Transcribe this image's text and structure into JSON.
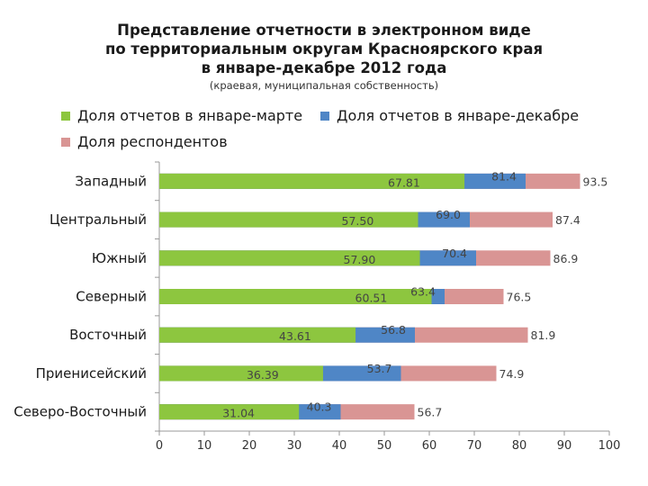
{
  "chart_data": {
    "type": "bar",
    "orientation": "horizontal",
    "title_lines": [
      "Представление отчетности в электронном виде",
      "по территориальным округам Красноярского края",
      "в январе-декабре 2012 года"
    ],
    "subtitle": "(краевая, муниципальная собственность)",
    "categories": [
      "Западный",
      "Центральный",
      "Южный",
      "Северный",
      "Восточный",
      "Приенисейский",
      "Северо-Восточный"
    ],
    "series": [
      {
        "name": "Доля отчетов в январе-марте",
        "values": [
          67.81,
          57.5,
          57.9,
          60.51,
          43.61,
          36.39,
          31.04
        ],
        "labels": [
          "67.81",
          "57.50",
          "57.90",
          "60.51",
          "43.61",
          "36.39",
          "31.04"
        ],
        "color": "#8dc63f"
      },
      {
        "name": "Доля отчетов в январе-декабре",
        "values": [
          81.4,
          69.0,
          70.4,
          63.4,
          56.8,
          53.7,
          40.3
        ],
        "labels": [
          "81.4",
          "69.0",
          "70.4",
          "63.4",
          "56.8",
          "53.7",
          "40.3"
        ],
        "color": "#4f86c6"
      },
      {
        "name": "Доля респондентов",
        "values": [
          93.5,
          87.4,
          86.9,
          76.5,
          81.9,
          74.9,
          56.7
        ],
        "labels": [
          "93.5",
          "87.4",
          "86.9",
          "76.5",
          "81.9",
          "74.9",
          "56.7"
        ],
        "color": "#d99594"
      }
    ],
    "xlim": [
      0,
      100
    ],
    "xticks": [
      "0",
      "10",
      "20",
      "30",
      "40",
      "50",
      "60",
      "70",
      "80",
      "90",
      "100"
    ],
    "legend_position": "top",
    "xlabel": "",
    "ylabel": ""
  }
}
